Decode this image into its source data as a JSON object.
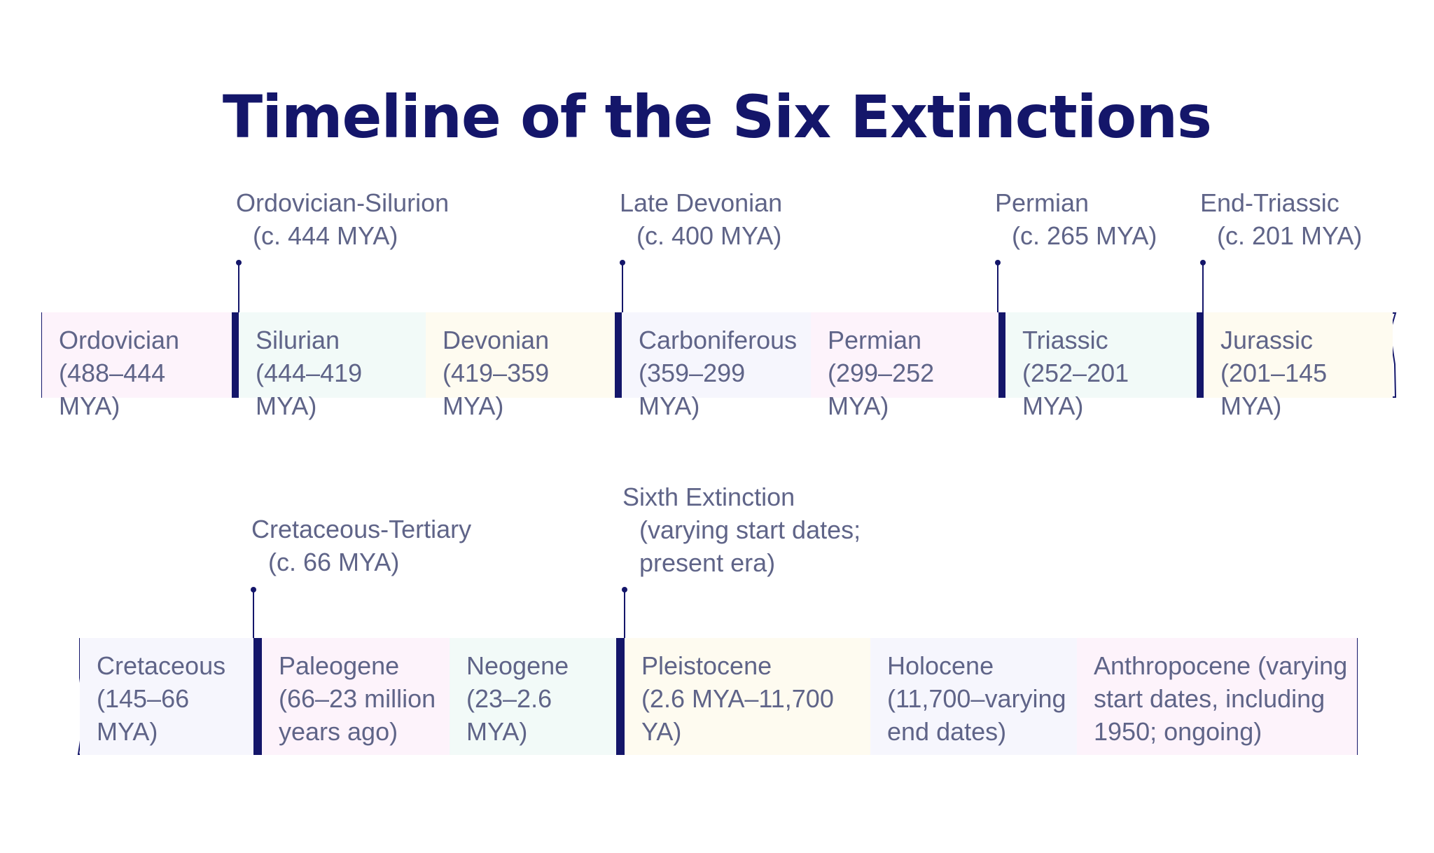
{
  "title": "Timeline of the Six Extinctions",
  "colors": {
    "ink": "#14166a",
    "text": "#5f6488",
    "pink": "#fdf3fb",
    "mint": "#f2faf8",
    "cream": "#fefbf0",
    "lavender": "#f6f6fd"
  },
  "row1": {
    "periods": [
      {
        "name": "Ordovician",
        "dates": "(488–444 MYA)",
        "color": "#fdf3fb"
      },
      {
        "name": "Silurian",
        "dates": "(444–419 MYA)",
        "color": "#f2faf8"
      },
      {
        "name": "Devonian",
        "dates": "(419–359 MYA)",
        "color": "#fefbf0"
      },
      {
        "name": "Carboniferous",
        "dates": "(359–299 MYA)",
        "color": "#f6f6fd"
      },
      {
        "name": "Permian",
        "dates": "(299–252 MYA)",
        "color": "#fdf3fb"
      },
      {
        "name": "Triassic",
        "dates": "(252–201 MYA)",
        "color": "#f2faf8"
      },
      {
        "name": "Jurassic",
        "dates": "(201–145 MYA)",
        "color": "#fefbf0"
      }
    ],
    "events": [
      {
        "name": "Ordovician-Silurion",
        "dates": "(c. 444 MYA)"
      },
      {
        "name": "Late Devonian",
        "dates": "(c. 400 MYA)"
      },
      {
        "name": "Permian",
        "dates": "(c. 265 MYA)"
      },
      {
        "name": "End-Triassic",
        "dates": "(c. 201 MYA)"
      }
    ]
  },
  "row2": {
    "periods": [
      {
        "name": "Cretaceous",
        "dates": "(145–66 MYA)",
        "color": "#f6f6fd"
      },
      {
        "name": "Paleogene",
        "dates": "(66–23 million years ago)",
        "color": "#fdf3fb"
      },
      {
        "name": "Neogene",
        "dates": "(23–2.6 MYA)",
        "color": "#f2faf8"
      },
      {
        "name": "Pleistocene",
        "dates": "(2.6 MYA–11,700 YA)",
        "color": "#fefbf0"
      },
      {
        "name": "Holocene",
        "dates": "(11,700–varying end dates)",
        "color": "#f6f6fd"
      },
      {
        "name": "Anthropocene (varying start dates, including 1950; ongoing)",
        "dates": "",
        "color": "#fdf3fb"
      }
    ],
    "events": [
      {
        "name": "Cretaceous-Tertiary",
        "dates": "(c. 66 MYA)"
      },
      {
        "name": "Sixth Extinction",
        "dates": "(varying start dates;\npresent era)"
      }
    ]
  }
}
